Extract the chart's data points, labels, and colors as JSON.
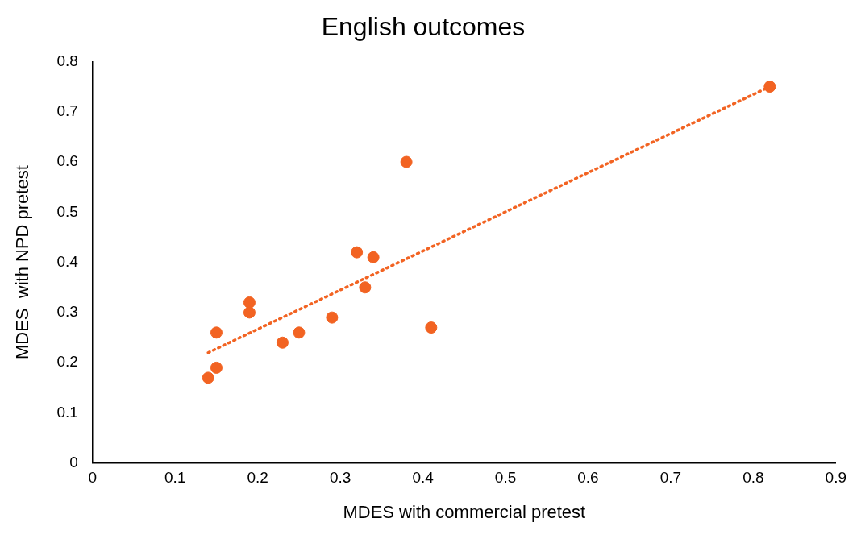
{
  "chart_data": {
    "type": "scatter",
    "title": "English outcomes",
    "xlabel": "MDES with commercial pretest",
    "ylabel": "MDES  with NPD pretest",
    "xlim": [
      0,
      0.9
    ],
    "xticks": [
      0,
      0.1,
      0.2,
      0.3,
      0.4,
      0.5,
      0.6,
      0.7,
      0.8,
      0.9
    ],
    "ylim": [
      0,
      0.8
    ],
    "yticks": [
      0,
      0.1,
      0.2,
      0.3,
      0.4,
      0.5,
      0.6,
      0.7,
      0.8
    ],
    "grid": false,
    "legend": false,
    "series": [
      {
        "type": "scatter",
        "color": "#f26322",
        "marker": "circle",
        "x": [
          0.14,
          0.15,
          0.15,
          0.19,
          0.19,
          0.23,
          0.25,
          0.29,
          0.32,
          0.33,
          0.34,
          0.38,
          0.41,
          0.82
        ],
        "values": [
          0.17,
          0.19,
          0.26,
          0.32,
          0.3,
          0.24,
          0.26,
          0.29,
          0.42,
          0.35,
          0.41,
          0.6,
          0.27,
          0.75
        ]
      },
      {
        "type": "line",
        "color": "#f26322",
        "marker": "none",
        "line_style": "dotted",
        "x": [
          0.14,
          0.82
        ],
        "values": [
          0.22,
          0.75
        ]
      }
    ]
  }
}
